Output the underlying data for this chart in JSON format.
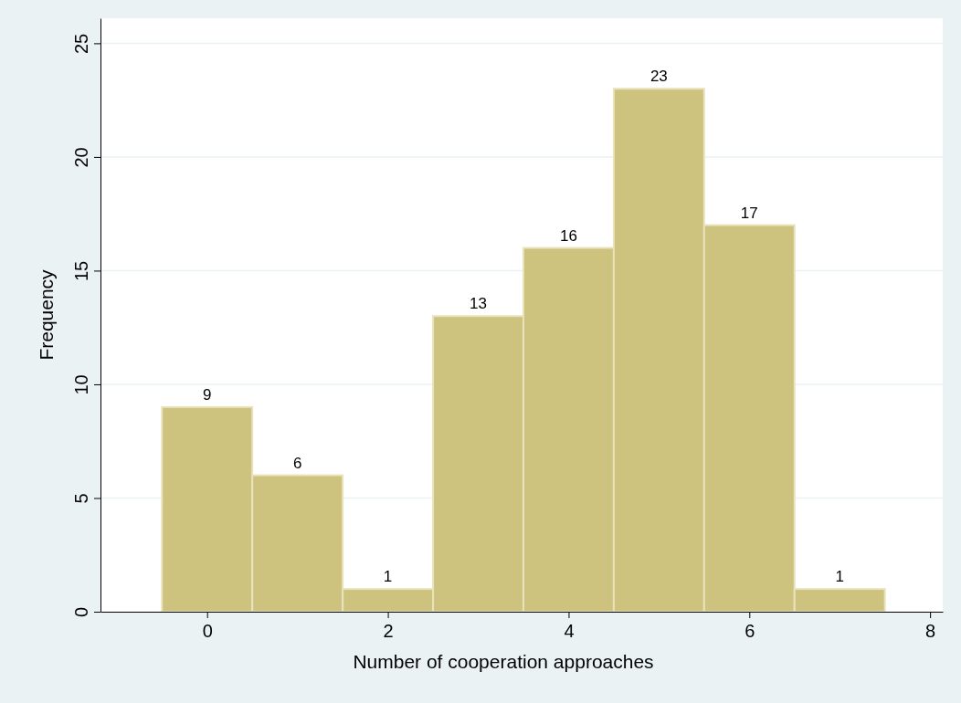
{
  "chart_data": {
    "type": "histogram",
    "xlabel": "Number of cooperation approaches",
    "ylabel": "Frequency",
    "bins": [
      -0.5,
      0.5,
      1.5,
      2.5,
      3.5,
      4.5,
      5.5,
      6.5,
      7.5
    ],
    "values": [
      9,
      6,
      1,
      13,
      16,
      23,
      17,
      1
    ],
    "color": "#cdc37f",
    "xlim": [
      -1.18,
      8.14
    ],
    "xticks": [
      0,
      2,
      4,
      6,
      8
    ],
    "ylim": [
      0,
      26.1
    ],
    "yticks": [
      0,
      5,
      10,
      15,
      20,
      25
    ],
    "grid": "y",
    "data_labels": true
  }
}
